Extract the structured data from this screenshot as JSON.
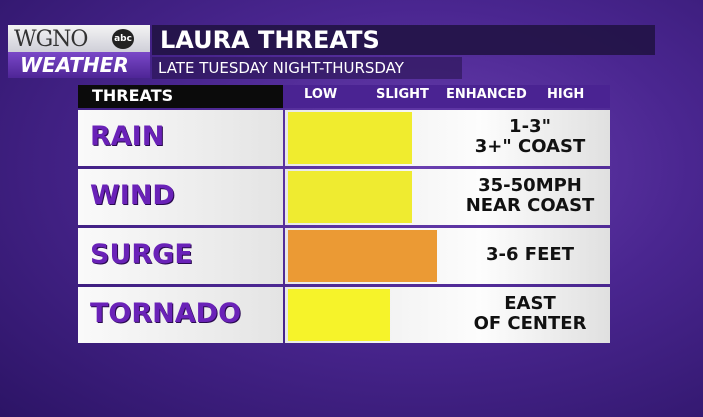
{
  "logo": {
    "station": "WGNO",
    "network": "abc",
    "label": "WEATHER"
  },
  "header": {
    "title": "LAURA THREATS",
    "subtitle": "LATE TUESDAY NIGHT-THURSDAY"
  },
  "table": {
    "columns": [
      "THREATS",
      "LOW",
      "SLIGHT",
      "ENHANCED",
      "HIGH"
    ],
    "rows": [
      {
        "threat": "RAIN",
        "detail": [
          "1-3\"",
          "3+\" COAST"
        ]
      },
      {
        "threat": "WIND",
        "detail": [
          "35-50MPH",
          "NEAR COAST"
        ]
      },
      {
        "threat": "SURGE",
        "detail": [
          "3-6 FEET"
        ]
      },
      {
        "threat": "TORNADO",
        "detail": [
          "EAST",
          "OF CENTER"
        ]
      }
    ]
  }
}
